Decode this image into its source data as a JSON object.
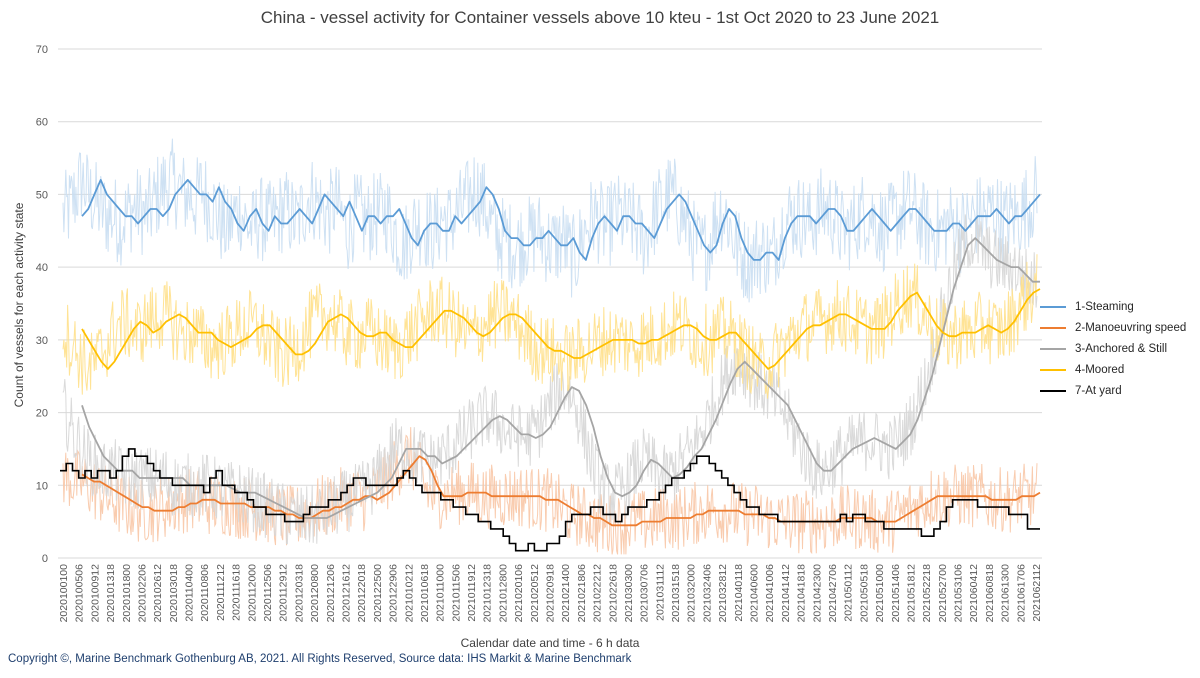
{
  "chart_data": {
    "type": "line",
    "title": "China - vessel activity for Container vessels above 10 kteu - 1st Oct 2020 to 23 June 2021",
    "xlabel": "Calendar date and time - 6 h data",
    "ylabel": "Count of vessels for each activity state",
    "ylim": [
      0,
      70
    ],
    "yticks": [
      0,
      10,
      20,
      30,
      40,
      50,
      60,
      70
    ],
    "grid": true,
    "legend_position": "right",
    "x_tick_labels": [
      "2020100100",
      "2020100506",
      "2020100912",
      "2020101318",
      "2020101800",
      "2020102206",
      "2020102612",
      "2020103018",
      "2020110400",
      "2020110806",
      "2020111212",
      "2020111618",
      "2020112000",
      "2020112506",
      "2020112912",
      "2020120318",
      "2020120800",
      "2020121206",
      "2020121612",
      "2020122018",
      "2020122500",
      "2020122906",
      "2021010212",
      "2021010618",
      "2021011000",
      "2021011506",
      "2021011912",
      "2021012318",
      "2021012800",
      "2021020106",
      "2021020512",
      "2021020918",
      "2021021400",
      "2021021806",
      "2021022212",
      "2021022618",
      "2021030300",
      "2021030706",
      "2021031112",
      "2021031518",
      "2021032000",
      "2021032406",
      "2021032812",
      "2021040118",
      "2021040600",
      "2021041006",
      "2021041412",
      "2021041818",
      "2021042300",
      "2021042706",
      "2021050112",
      "2021050518",
      "2021051000",
      "2021051406",
      "2021051812",
      "2021052218",
      "2021052700",
      "2021053106",
      "2021060412",
      "2021060818",
      "2021061300",
      "2021061706",
      "2021062112"
    ],
    "series": [
      {
        "name": "1-Steaming",
        "color": "#5b9bd5",
        "moving_avg": [
          47,
          48,
          50,
          52,
          50,
          49,
          48,
          47,
          47,
          46,
          47,
          48,
          48,
          47,
          48,
          50,
          51,
          52,
          51,
          50,
          50,
          49,
          51,
          49,
          48,
          46,
          45,
          47,
          48,
          46,
          45,
          47,
          46,
          46,
          47,
          48,
          47,
          46,
          48,
          50,
          49,
          48,
          47,
          49,
          47,
          45,
          47,
          47,
          46,
          47,
          47,
          48,
          46,
          44,
          43,
          45,
          46,
          46,
          45,
          45,
          47,
          46,
          47,
          48,
          49,
          51,
          50,
          48,
          45,
          44,
          44,
          43,
          43,
          44,
          44,
          45,
          44,
          43,
          43,
          44,
          42,
          41,
          44,
          46,
          47,
          46,
          45,
          47,
          47,
          46,
          46,
          45,
          44,
          46,
          48,
          49,
          50,
          49,
          47,
          45,
          43,
          42,
          43,
          46,
          48,
          47,
          44,
          42,
          41,
          41,
          42,
          42,
          41,
          44,
          46,
          47,
          47,
          47,
          46,
          47,
          48,
          48,
          47,
          45,
          45,
          46,
          47,
          48,
          47,
          46,
          45,
          46,
          47,
          48,
          48,
          47,
          46,
          45,
          45,
          45,
          46,
          46,
          45,
          46,
          47,
          47,
          47,
          48,
          47,
          46,
          47,
          47,
          48,
          49,
          50
        ]
      },
      {
        "name": "2-Manoeuvring speed",
        "color": "#ed7d31",
        "moving_avg": [
          11.5,
          11,
          10.5,
          10.5,
          10,
          9.5,
          9,
          8.5,
          8,
          7.5,
          7,
          7,
          6.5,
          6.5,
          6.5,
          6.5,
          7,
          7,
          7.5,
          7.5,
          8,
          8,
          8,
          7.5,
          7.5,
          7.5,
          7.5,
          7.5,
          7,
          7,
          7,
          7,
          6.5,
          6.5,
          6,
          6,
          5.5,
          5.5,
          5.5,
          6,
          6.5,
          6.5,
          7,
          7,
          7.5,
          8,
          8,
          8.5,
          8.5,
          8,
          8.5,
          9,
          10,
          11,
          12,
          13,
          14,
          13.5,
          12,
          10,
          8.5,
          8.5,
          8.5,
          8.5,
          9,
          9,
          9,
          9,
          8.5,
          8.5,
          8.5,
          8.5,
          8.5,
          8.5,
          8.5,
          8.5,
          8.5,
          8,
          8,
          8,
          7.5,
          7,
          6.5,
          6,
          6,
          5.5,
          5.5,
          5,
          4.5,
          4.5,
          4.5,
          4.5,
          4.5,
          5,
          5,
          5,
          5,
          5.5,
          5.5,
          5.5,
          5.5,
          5.5,
          6,
          6,
          6.5,
          6.5,
          6.5,
          6.5,
          6.5,
          6.5,
          6,
          6,
          6,
          6,
          5.5,
          5.5,
          5,
          5,
          5,
          5,
          5,
          5,
          5,
          5,
          5,
          5,
          5.5,
          5.5,
          5.5,
          5.5,
          5.5,
          5.5,
          5,
          5,
          5,
          5,
          5.5,
          6,
          6.5,
          7,
          7.5,
          8,
          8.5,
          8.5,
          8.5,
          8.5,
          8.5,
          8.5,
          8.5,
          8.5,
          8.5,
          8,
          8,
          8,
          8,
          8,
          8.5,
          8.5,
          8.5,
          9
        ]
      },
      {
        "name": "3-Anchored & Still",
        "color": "#a5a5a5",
        "moving_avg": [
          21,
          18,
          16,
          14,
          13,
          12,
          12,
          12,
          11,
          11,
          11,
          11,
          11,
          11,
          11,
          10,
          10,
          10,
          10,
          10,
          10,
          9.5,
          9,
          9,
          9,
          8.5,
          8,
          7.5,
          7,
          6.5,
          6,
          5.5,
          5.5,
          5.5,
          5.5,
          6,
          6.5,
          7,
          7.5,
          8,
          8.5,
          9,
          10,
          11,
          13,
          15,
          15,
          15,
          14,
          14,
          13,
          13.5,
          14,
          15,
          16,
          17,
          18,
          19,
          19.5,
          19,
          18,
          17,
          17,
          16.5,
          17,
          18,
          20,
          22,
          23.5,
          23,
          21,
          18,
          14,
          11,
          9,
          8.5,
          9,
          10,
          12,
          13.5,
          13,
          12,
          11,
          11.5,
          12.5,
          14,
          15,
          17,
          19,
          21.5,
          24,
          26,
          27,
          26,
          25,
          24,
          23,
          22,
          21,
          19,
          17,
          15,
          13,
          12,
          12,
          13,
          14,
          15,
          15.5,
          16,
          16.5,
          16,
          15.5,
          15,
          16,
          17,
          19,
          22,
          25,
          29,
          33,
          37,
          40,
          43,
          44,
          43,
          42,
          41,
          40.5,
          40,
          40,
          39,
          38,
          38
        ]
      },
      {
        "name": "4-Moored",
        "color": "#ffc000",
        "moving_avg": [
          31.5,
          30,
          28.5,
          27,
          26,
          27,
          28.5,
          30,
          31.5,
          32.5,
          32,
          31,
          31.5,
          32.5,
          33,
          33.5,
          33,
          32,
          31,
          31,
          31,
          30,
          29.5,
          29,
          29.5,
          30,
          30.5,
          31.5,
          32,
          32,
          31,
          30,
          29,
          28,
          28,
          28.5,
          29.5,
          31,
          32.5,
          33,
          33.5,
          33,
          32,
          31,
          30.5,
          30.5,
          31,
          31,
          30,
          29.5,
          29,
          29,
          30,
          31,
          32,
          33,
          34,
          34,
          33.5,
          33,
          32,
          31,
          30.5,
          31,
          32,
          33,
          33.5,
          33.5,
          33,
          32,
          31,
          30,
          29,
          28.5,
          28.5,
          28,
          27.5,
          27.5,
          28,
          28.5,
          29,
          29.5,
          30,
          30,
          30,
          30,
          29.5,
          29.5,
          30,
          30,
          30.5,
          31,
          31.5,
          32,
          32,
          31.5,
          30.5,
          30,
          30,
          30.5,
          31,
          31,
          30,
          29,
          28,
          27,
          26,
          26.5,
          27.5,
          28.5,
          29.5,
          30.5,
          31.5,
          32,
          32,
          32.5,
          33,
          33.5,
          33.5,
          33,
          32.5,
          32,
          31.5,
          31.5,
          31.5,
          32.5,
          34,
          35,
          36,
          36.5,
          35,
          33.5,
          32,
          31,
          30.5,
          30.5,
          31,
          31,
          31,
          31.5,
          32,
          31.5,
          31,
          31.5,
          32.5,
          34,
          35.5,
          36.5,
          37
        ]
      },
      {
        "name": "7-At yard",
        "color": "#000000",
        "steps": [
          12,
          13,
          12,
          11,
          12,
          11,
          12,
          12,
          11,
          12,
          14,
          15,
          14,
          14,
          13,
          12,
          11,
          11,
          10,
          10,
          10,
          10,
          10,
          9,
          11,
          12,
          10,
          10,
          9,
          9,
          8,
          7,
          7,
          6,
          6,
          6,
          5,
          5,
          5,
          6,
          7,
          7,
          7,
          8,
          8,
          9,
          10,
          11,
          11,
          10,
          10,
          10,
          10,
          10,
          11,
          12,
          11,
          10,
          9,
          9,
          9,
          8,
          8,
          7,
          7,
          6,
          6,
          5,
          5,
          4,
          4,
          3,
          2,
          1,
          1,
          2,
          1,
          1,
          2,
          2,
          3,
          5,
          6,
          6,
          6,
          7,
          7,
          6,
          6,
          5,
          6,
          7,
          7,
          7,
          8,
          8,
          9,
          10,
          11,
          11,
          12,
          13,
          14,
          14,
          13,
          12,
          11,
          10,
          9,
          8,
          7,
          7,
          6,
          6,
          6,
          5,
          5,
          5,
          5,
          5,
          5,
          5,
          5,
          5,
          5,
          6,
          5,
          6,
          6,
          5,
          5,
          5,
          4,
          4,
          4,
          4,
          4,
          4,
          3,
          3,
          4,
          5,
          7,
          8,
          8,
          8,
          8,
          7,
          7,
          7,
          7,
          7,
          6,
          6,
          6,
          4,
          4
        ]
      }
    ]
  },
  "copyright": "Copyright ©, Marine Benchmark Gothenburg AB, 2021. All Rights Reserved, Source data: IHS Markit & Marine Benchmark"
}
